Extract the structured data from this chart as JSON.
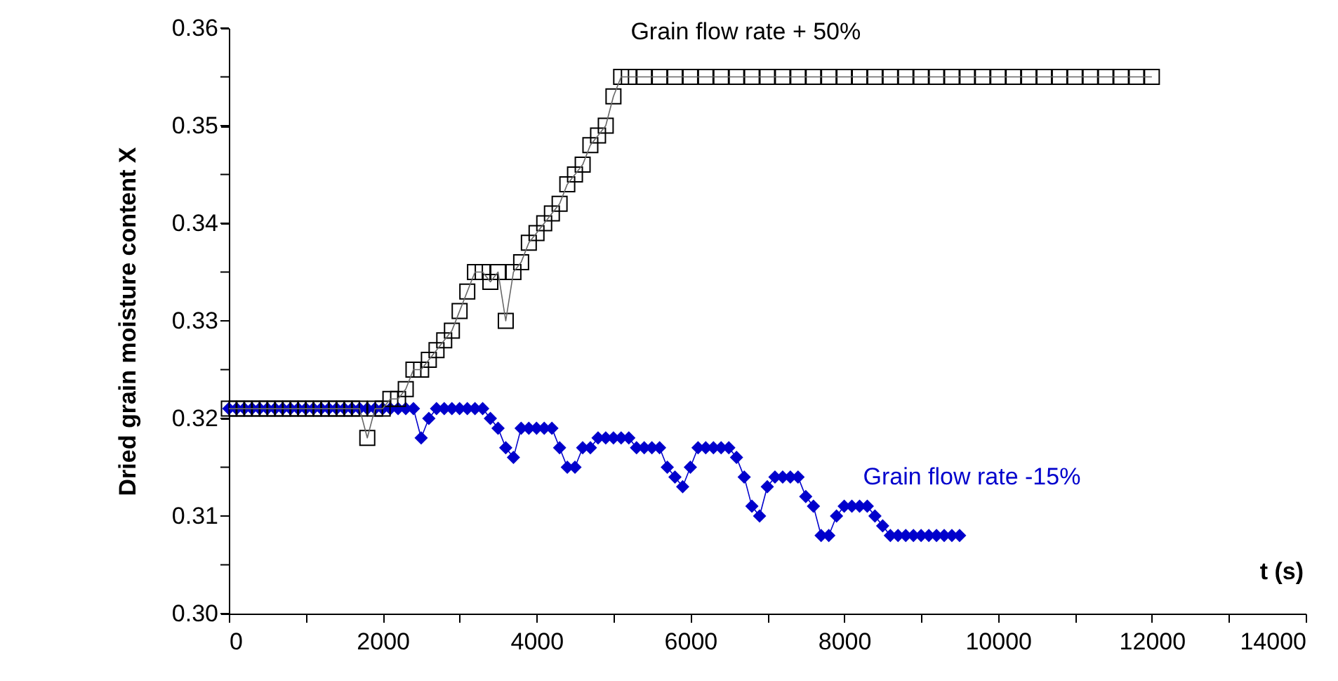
{
  "chart_data": {
    "type": "line",
    "xlabel": "t (s)",
    "ylabel": "Dried grain moisture content X",
    "xlim": [
      0,
      14000
    ],
    "ylim": [
      0.3,
      0.36
    ],
    "xticks": [
      0,
      {
        "value": 1000,
        "label": null
      },
      2000,
      {
        "value": 3000,
        "label": null
      },
      4000,
      {
        "value": 5000,
        "label": null
      },
      6000,
      {
        "value": 7000,
        "label": null
      },
      8000,
      {
        "value": 9000,
        "label": null
      },
      10000,
      {
        "value": 11000,
        "label": null
      },
      12000,
      {
        "value": 13000,
        "label": null
      },
      14000
    ],
    "yticks": [
      {
        "value": 0.3,
        "label": "0.30"
      },
      {
        "value": 0.305,
        "label": null
      },
      {
        "value": 0.31,
        "label": "0.31"
      },
      {
        "value": 0.315,
        "label": null
      },
      {
        "value": 0.32,
        "label": "0.32"
      },
      {
        "value": 0.325,
        "label": null
      },
      {
        "value": 0.33,
        "label": "0.33"
      },
      {
        "value": 0.335,
        "label": null
      },
      {
        "value": 0.34,
        "label": "0.34"
      },
      {
        "value": 0.345,
        "label": null
      },
      {
        "value": 0.35,
        "label": "0.35"
      },
      {
        "value": 0.355,
        "label": null
      },
      {
        "value": 0.36,
        "label": "0.36"
      }
    ],
    "grid": false,
    "legend": false,
    "line_style": "solid",
    "series": [
      {
        "name": "Grain flow rate + 50%",
        "color": "#000000",
        "marker": "square",
        "x": [
          0,
          100,
          200,
          300,
          400,
          500,
          600,
          700,
          800,
          900,
          1000,
          1100,
          1200,
          1300,
          1400,
          1500,
          1600,
          1700,
          1800,
          1900,
          2000,
          2100,
          2200,
          2300,
          2400,
          2500,
          2600,
          2700,
          2800,
          2900,
          3000,
          3100,
          3200,
          3300,
          3400,
          3500,
          3600,
          3700,
          3800,
          3900,
          4000,
          4100,
          4200,
          4300,
          4400,
          4500,
          4600,
          4700,
          4800,
          4900,
          5000,
          5100,
          5200,
          5400,
          5600,
          5800,
          6000,
          6200,
          6400,
          6600,
          6800,
          7000,
          7200,
          7400,
          7600,
          7800,
          8000,
          8200,
          8400,
          8600,
          8800,
          9000,
          9200,
          9400,
          9600,
          9800,
          10000,
          10200,
          10400,
          10600,
          10800,
          11000,
          11200,
          11400,
          11600,
          11800,
          12000
        ],
        "values": [
          0.321,
          0.321,
          0.321,
          0.321,
          0.321,
          0.321,
          0.321,
          0.321,
          0.321,
          0.321,
          0.321,
          0.321,
          0.321,
          0.321,
          0.321,
          0.321,
          0.321,
          0.321,
          0.318,
          0.321,
          0.321,
          0.322,
          0.322,
          0.323,
          0.325,
          0.325,
          0.326,
          0.327,
          0.328,
          0.329,
          0.331,
          0.333,
          0.335,
          0.335,
          0.334,
          0.335,
          0.33,
          0.335,
          0.336,
          0.338,
          0.339,
          0.34,
          0.341,
          0.342,
          0.344,
          0.345,
          0.346,
          0.348,
          0.349,
          0.35,
          0.353,
          0.355,
          0.355,
          0.355,
          0.355,
          0.355,
          0.355,
          0.355,
          0.355,
          0.355,
          0.355,
          0.355,
          0.355,
          0.355,
          0.355,
          0.355,
          0.355,
          0.355,
          0.355,
          0.355,
          0.355,
          0.355,
          0.355,
          0.355,
          0.355,
          0.355,
          0.355,
          0.355,
          0.355,
          0.355,
          0.355,
          0.355,
          0.355,
          0.355,
          0.355,
          0.355,
          0.355
        ]
      },
      {
        "name": "Grain flow rate -15%",
        "color": "#0000cc",
        "marker": "diamond",
        "x": [
          0,
          100,
          200,
          300,
          400,
          500,
          600,
          700,
          800,
          900,
          1000,
          1100,
          1200,
          1300,
          1400,
          1500,
          1600,
          1700,
          1800,
          1900,
          2000,
          2100,
          2200,
          2300,
          2400,
          2500,
          2600,
          2700,
          2800,
          2900,
          3000,
          3100,
          3200,
          3300,
          3400,
          3500,
          3600,
          3700,
          3800,
          3900,
          4000,
          4100,
          4200,
          4300,
          4400,
          4500,
          4600,
          4700,
          4800,
          4900,
          5000,
          5100,
          5200,
          5300,
          5400,
          5500,
          5600,
          5700,
          5800,
          5900,
          6000,
          6100,
          6200,
          6300,
          6400,
          6500,
          6600,
          6700,
          6800,
          6900,
          7000,
          7100,
          7200,
          7300,
          7400,
          7500,
          7600,
          7700,
          7800,
          7900,
          8000,
          8100,
          8200,
          8300,
          8400,
          8500,
          8600,
          8700,
          8800,
          8900,
          9000,
          9100,
          9200,
          9300,
          9400,
          9500
        ],
        "values": [
          0.321,
          0.321,
          0.321,
          0.321,
          0.321,
          0.321,
          0.321,
          0.321,
          0.321,
          0.321,
          0.321,
          0.321,
          0.321,
          0.321,
          0.321,
          0.321,
          0.321,
          0.321,
          0.321,
          0.321,
          0.321,
          0.321,
          0.321,
          0.321,
          0.321,
          0.318,
          0.32,
          0.321,
          0.321,
          0.321,
          0.321,
          0.321,
          0.321,
          0.321,
          0.32,
          0.319,
          0.317,
          0.316,
          0.319,
          0.319,
          0.319,
          0.319,
          0.319,
          0.317,
          0.315,
          0.315,
          0.317,
          0.317,
          0.318,
          0.318,
          0.318,
          0.318,
          0.318,
          0.317,
          0.317,
          0.317,
          0.317,
          0.315,
          0.314,
          0.313,
          0.315,
          0.317,
          0.317,
          0.317,
          0.317,
          0.317,
          0.316,
          0.314,
          0.311,
          0.31,
          0.313,
          0.314,
          0.314,
          0.314,
          0.314,
          0.312,
          0.311,
          0.308,
          0.308,
          0.31,
          0.311,
          0.311,
          0.311,
          0.311,
          0.31,
          0.309,
          0.308,
          0.308,
          0.308,
          0.308,
          0.308,
          0.308,
          0.308,
          0.308,
          0.308,
          0.308
        ]
      }
    ]
  }
}
